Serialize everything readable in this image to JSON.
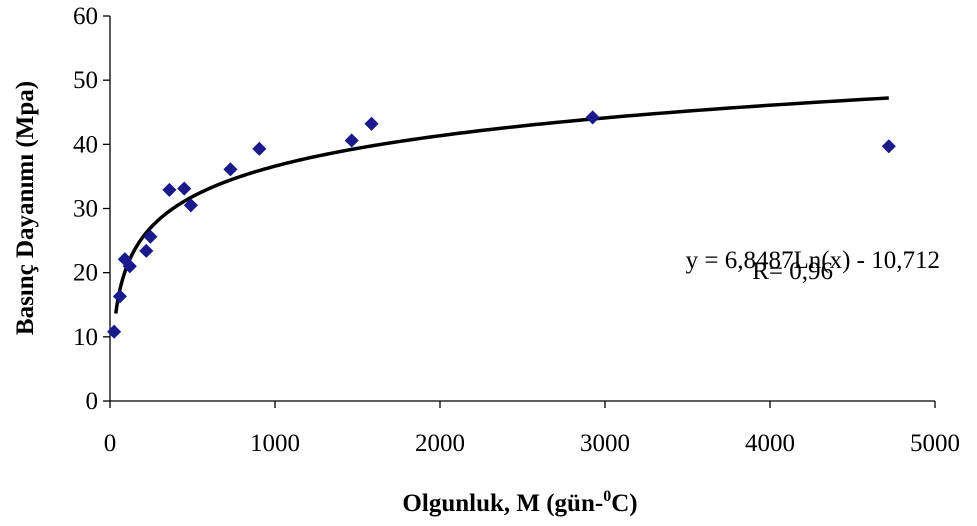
{
  "chart_data": {
    "type": "scatter",
    "xlabel": "Olgunluk, M (gün-",
    "xlabel_sup": "0",
    "xlabel_suffix": "C)",
    "ylabel": "Basınç Dayanımı (Mpa)",
    "xlim": [
      0,
      5000
    ],
    "ylim": [
      0,
      60
    ],
    "xticks": [
      0,
      1000,
      2000,
      3000,
      4000,
      5000
    ],
    "yticks": [
      0,
      10,
      20,
      30,
      40,
      50,
      60
    ],
    "grid": false,
    "series": [
      {
        "marker": "diamond",
        "color": "#1a1a8c",
        "points": [
          {
            "x": 25,
            "y": 10.8
          },
          {
            "x": 60,
            "y": 16.3
          },
          {
            "x": 90,
            "y": 22.1
          },
          {
            "x": 120,
            "y": 21.0
          },
          {
            "x": 220,
            "y": 23.4
          },
          {
            "x": 245,
            "y": 25.6
          },
          {
            "x": 360,
            "y": 32.9
          },
          {
            "x": 450,
            "y": 33.1
          },
          {
            "x": 490,
            "y": 30.5
          },
          {
            "x": 730,
            "y": 36.1
          },
          {
            "x": 905,
            "y": 39.3
          },
          {
            "x": 1465,
            "y": 40.6
          },
          {
            "x": 1585,
            "y": 43.2
          },
          {
            "x": 2925,
            "y": 44.2
          },
          {
            "x": 4720,
            "y": 39.7
          }
        ]
      }
    ],
    "trendline": {
      "type": "logarithmic",
      "a": 6.8487,
      "b": -10.712,
      "x_range": [
        35,
        4720
      ],
      "color": "#000000"
    },
    "annotations": [
      {
        "text": "y = 6,8487Ln(x) - 10,712"
      },
      {
        "text": "R= 0,96"
      }
    ]
  }
}
